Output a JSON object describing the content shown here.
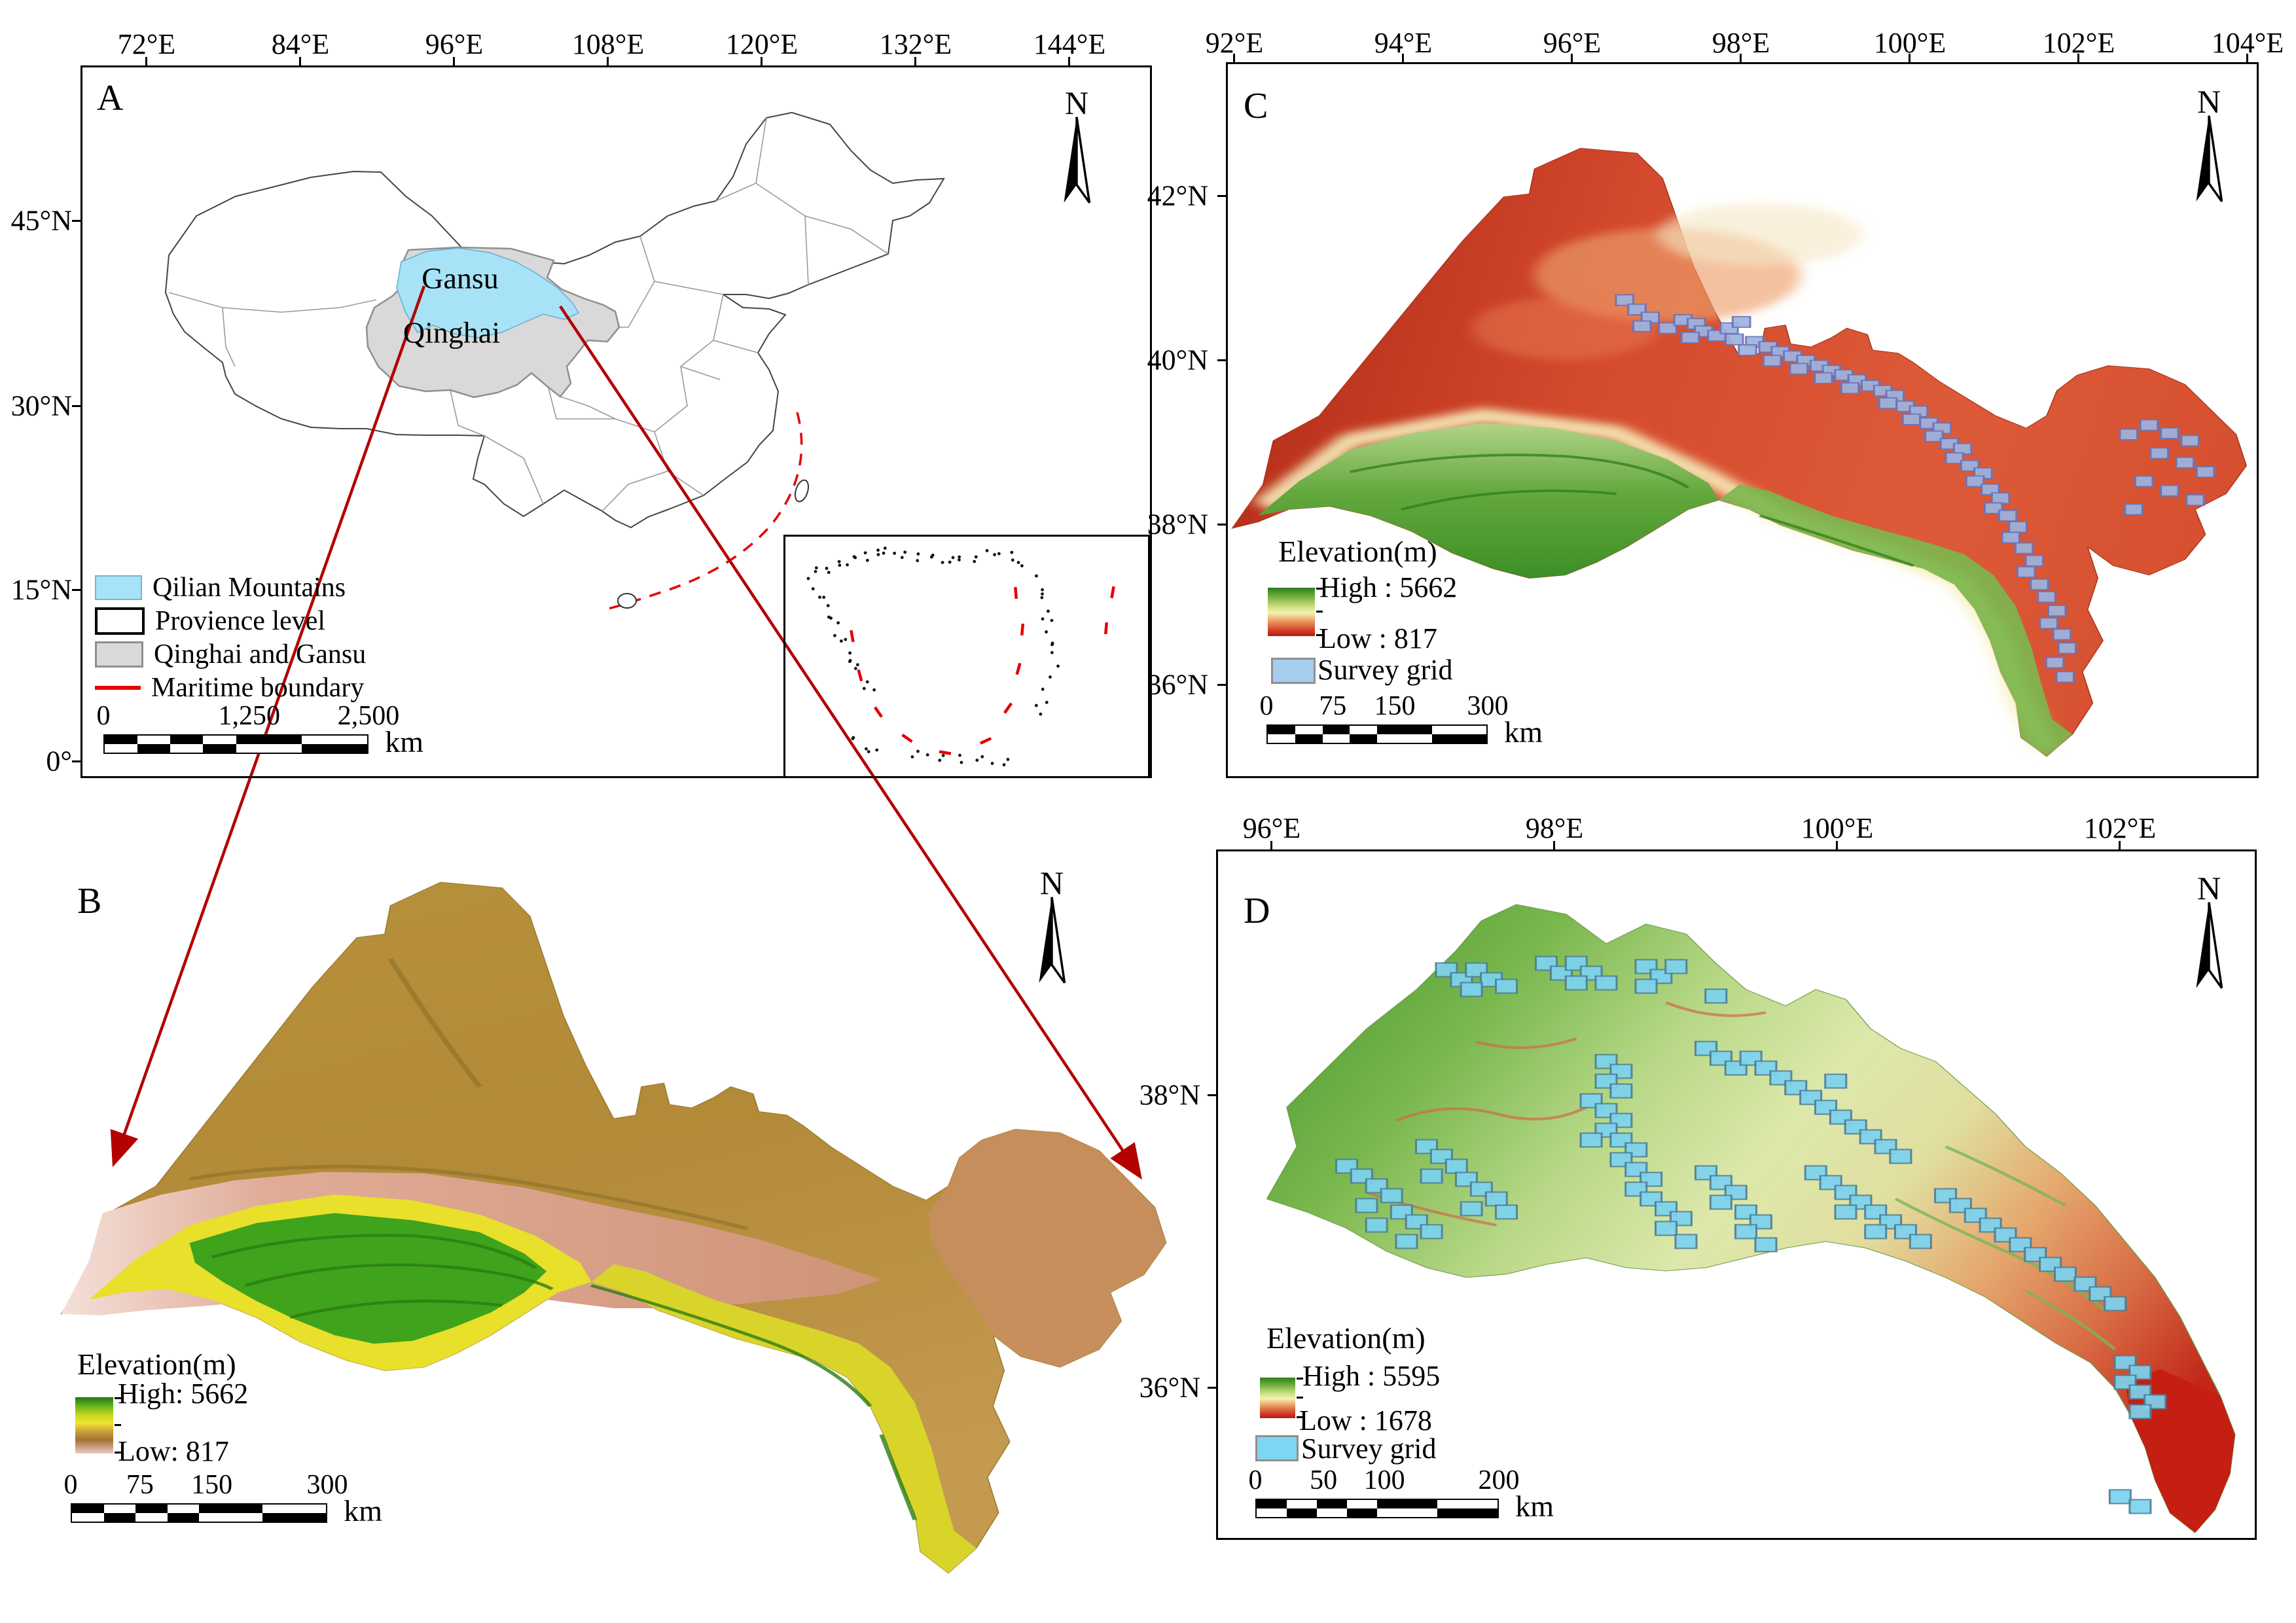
{
  "figure": {
    "north_label": "N"
  },
  "panel_a": {
    "label": "A",
    "x_ticks": [
      "72°E",
      "84°E",
      "96°E",
      "108°E",
      "120°E",
      "132°E",
      "144°E"
    ],
    "y_ticks": [
      "45°N",
      "30°N",
      "15°N",
      "0°"
    ],
    "regions": {
      "gansu": "Gansu",
      "qinghai": "Qinghai"
    },
    "legend": {
      "qilian": "Qilian Mountains",
      "province": "Provience level",
      "qinghai_gansu": "Qinghai and Gansu",
      "maritime": "Maritime boundary"
    },
    "scalebar": {
      "t0": "0",
      "t1": "1,250",
      "t2": "2,500",
      "unit": "km"
    }
  },
  "panel_b": {
    "label": "B",
    "legend": {
      "title": "Elevation(m)",
      "high": "High: 5662",
      "low": "Low: 817"
    },
    "scalebar": {
      "t0": "0",
      "t1": "75",
      "t2": "150",
      "t3": "300",
      "unit": "km"
    }
  },
  "panel_c": {
    "label": "C",
    "x_ticks": [
      "92°E",
      "94°E",
      "96°E",
      "98°E",
      "100°E",
      "102°E",
      "104°E"
    ],
    "y_ticks": [
      "42°N",
      "40°N",
      "38°N",
      "36°N"
    ],
    "legend": {
      "title": "Elevation(m)",
      "high": "High : 5662",
      "low": "Low : 817",
      "survey": "Survey grid"
    },
    "scalebar": {
      "t0": "0",
      "t1": "75",
      "t2": "150",
      "t3": "300",
      "unit": "km"
    }
  },
  "panel_d": {
    "label": "D",
    "x_ticks": [
      "96°E",
      "98°E",
      "100°E",
      "102°E"
    ],
    "y_ticks": [
      "38°N",
      "36°N"
    ],
    "legend": {
      "title": "Elevation(m)",
      "high": "High : 5595",
      "low": "Low : 1678",
      "survey": "Survey grid"
    },
    "scalebar": {
      "t0": "0",
      "t1": "50",
      "t2": "100",
      "t3": "200",
      "unit": "km"
    }
  },
  "colors": {
    "qilian_fill": "#a8e2f6",
    "province_gray": "#d9d9d9",
    "maritime_red": "#e60000",
    "connector_red": "#b30000",
    "survey_c_fill": "#9db4e0",
    "survey_d_fill": "#7cd3f0"
  },
  "survey_grids": {
    "c": [
      [
        388,
        255
      ],
      [
        400,
        270
      ],
      [
        413,
        283
      ],
      [
        405,
        297
      ],
      [
        430,
        300
      ],
      [
        445,
        287
      ],
      [
        458,
        293
      ],
      [
        465,
        305
      ],
      [
        452,
        315
      ],
      [
        478,
        312
      ],
      [
        490,
        300
      ],
      [
        502,
        290
      ],
      [
        495,
        318
      ],
      [
        515,
        322
      ],
      [
        508,
        335
      ],
      [
        528,
        330
      ],
      [
        540,
        338
      ],
      [
        532,
        352
      ],
      [
        552,
        345
      ],
      [
        565,
        352
      ],
      [
        558,
        365
      ],
      [
        578,
        360
      ],
      [
        590,
        368
      ],
      [
        582,
        380
      ],
      [
        602,
        375
      ],
      [
        615,
        383
      ],
      [
        608,
        396
      ],
      [
        628,
        392
      ],
      [
        640,
        400
      ],
      [
        652,
        408
      ],
      [
        645,
        420
      ],
      [
        662,
        425
      ],
      [
        675,
        433
      ],
      [
        668,
        446
      ],
      [
        685,
        452
      ],
      [
        698,
        460
      ],
      [
        690,
        473
      ],
      [
        705,
        485
      ],
      [
        718,
        493
      ],
      [
        710,
        508
      ],
      [
        725,
        520
      ],
      [
        738,
        532
      ],
      [
        730,
        545
      ],
      [
        745,
        558
      ],
      [
        755,
        572
      ],
      [
        748,
        588
      ],
      [
        762,
        600
      ],
      [
        772,
        618
      ],
      [
        765,
        635
      ],
      [
        778,
        652
      ],
      [
        788,
        672
      ],
      [
        780,
        690
      ],
      [
        793,
        710
      ],
      [
        800,
        730
      ],
      [
        810,
        752
      ],
      [
        802,
        772
      ],
      [
        815,
        790
      ],
      [
        820,
        812
      ],
      [
        808,
        835
      ],
      [
        818,
        858
      ],
      [
        880,
        470
      ],
      [
        900,
        455
      ],
      [
        920,
        468
      ],
      [
        940,
        480
      ],
      [
        910,
        500
      ],
      [
        935,
        515
      ],
      [
        955,
        530
      ],
      [
        895,
        545
      ],
      [
        920,
        560
      ],
      [
        945,
        575
      ],
      [
        885,
        590
      ]
    ],
    "d": [
      [
        200,
        130
      ],
      [
        215,
        145
      ],
      [
        230,
        130
      ],
      [
        245,
        145
      ],
      [
        225,
        160
      ],
      [
        260,
        155
      ],
      [
        300,
        120
      ],
      [
        315,
        135
      ],
      [
        330,
        120
      ],
      [
        345,
        135
      ],
      [
        330,
        150
      ],
      [
        360,
        150
      ],
      [
        400,
        125
      ],
      [
        415,
        140
      ],
      [
        430,
        125
      ],
      [
        400,
        155
      ],
      [
        470,
        170
      ],
      [
        360,
        270
      ],
      [
        375,
        285
      ],
      [
        360,
        300
      ],
      [
        375,
        315
      ],
      [
        100,
        430
      ],
      [
        115,
        445
      ],
      [
        130,
        460
      ],
      [
        145,
        475
      ],
      [
        120,
        490
      ],
      [
        155,
        500
      ],
      [
        170,
        515
      ],
      [
        185,
        530
      ],
      [
        160,
        545
      ],
      [
        130,
        520
      ],
      [
        180,
        400
      ],
      [
        195,
        415
      ],
      [
        210,
        430
      ],
      [
        185,
        445
      ],
      [
        220,
        450
      ],
      [
        235,
        465
      ],
      [
        250,
        480
      ],
      [
        225,
        495
      ],
      [
        260,
        500
      ],
      [
        345,
        330
      ],
      [
        360,
        345
      ],
      [
        375,
        360
      ],
      [
        360,
        375
      ],
      [
        345,
        390
      ],
      [
        375,
        390
      ],
      [
        390,
        405
      ],
      [
        375,
        420
      ],
      [
        390,
        435
      ],
      [
        405,
        450
      ],
      [
        390,
        465
      ],
      [
        405,
        480
      ],
      [
        420,
        495
      ],
      [
        435,
        510
      ],
      [
        420,
        525
      ],
      [
        440,
        545
      ],
      [
        460,
        440
      ],
      [
        475,
        455
      ],
      [
        490,
        470
      ],
      [
        475,
        485
      ],
      [
        500,
        500
      ],
      [
        515,
        515
      ],
      [
        500,
        530
      ],
      [
        520,
        550
      ],
      [
        460,
        250
      ],
      [
        475,
        265
      ],
      [
        490,
        280
      ],
      [
        505,
        265
      ],
      [
        520,
        280
      ],
      [
        535,
        295
      ],
      [
        550,
        310
      ],
      [
        565,
        325
      ],
      [
        580,
        340
      ],
      [
        595,
        355
      ],
      [
        610,
        370
      ],
      [
        625,
        385
      ],
      [
        640,
        400
      ],
      [
        655,
        415
      ],
      [
        590,
        300
      ],
      [
        570,
        440
      ],
      [
        585,
        455
      ],
      [
        600,
        470
      ],
      [
        615,
        485
      ],
      [
        600,
        500
      ],
      [
        630,
        500
      ],
      [
        645,
        515
      ],
      [
        630,
        530
      ],
      [
        660,
        530
      ],
      [
        675,
        545
      ],
      [
        700,
        475
      ],
      [
        715,
        490
      ],
      [
        730,
        505
      ],
      [
        745,
        520
      ],
      [
        760,
        535
      ],
      [
        775,
        550
      ],
      [
        790,
        565
      ],
      [
        805,
        580
      ],
      [
        820,
        595
      ],
      [
        840,
        610
      ],
      [
        855,
        625
      ],
      [
        870,
        640
      ],
      [
        880,
        730
      ],
      [
        895,
        745
      ],
      [
        880,
        760
      ],
      [
        895,
        775
      ],
      [
        910,
        790
      ],
      [
        895,
        805
      ],
      [
        875,
        935
      ],
      [
        895,
        950
      ]
    ]
  }
}
